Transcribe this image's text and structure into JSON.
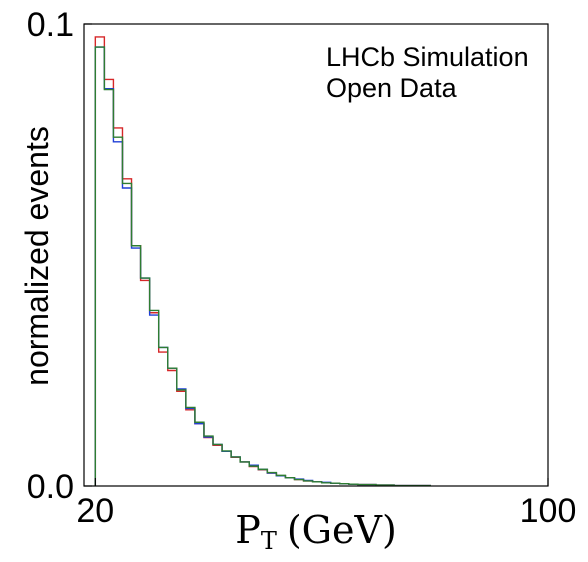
{
  "chart_data": {
    "type": "line",
    "xlabel": "P",
    "xlabel_sub": "T",
    "xlabel_unit": "(GeV)",
    "ylabel": "normalized events",
    "xlim": [
      18,
      100
    ],
    "ylim": [
      0.0,
      0.1
    ],
    "x_ticks": [
      20,
      100
    ],
    "y_ticks": [
      0.0,
      0.1
    ],
    "x_tick_labels": [
      "20",
      "100"
    ],
    "y_tick_labels": [
      "0.0",
      "0.1"
    ],
    "annotation_lines": [
      "LHCb Simulation",
      "Open Data"
    ],
    "grid": false,
    "legend": "none",
    "bin_edges": [
      20,
      21.6,
      23.2,
      24.8,
      26.4,
      28,
      29.6,
      31.2,
      32.8,
      34.4,
      36,
      37.6,
      39.2,
      40.8,
      42.4,
      44,
      45.6,
      47.2,
      48.8,
      50.4,
      52,
      53.6,
      55.2,
      56.8,
      58.4,
      60,
      61.6,
      63.2,
      64.8,
      66.4,
      68,
      69.6,
      71.2,
      72.8,
      74.4,
      76,
      77.6,
      79.2
    ],
    "series": [
      {
        "color": "#d62728",
        "values": [
          0.0972,
          0.088,
          0.0775,
          0.0665,
          0.052,
          0.0445,
          0.0375,
          0.029,
          0.025,
          0.0205,
          0.0165,
          0.0135,
          0.0105,
          0.0088,
          0.0075,
          0.0062,
          0.0052,
          0.0042,
          0.0035,
          0.0028,
          0.0022,
          0.0018,
          0.0014,
          0.0011,
          0.0009,
          0.0007,
          0.0006,
          0.0005,
          0.0004,
          0.0003,
          0.0003,
          0.0002,
          0.0002,
          0.0001,
          0.0001,
          0.0001,
          0.0001
        ]
      },
      {
        "color": "#1f3fd6",
        "values": [
          0.095,
          0.086,
          0.0745,
          0.0645,
          0.0515,
          0.045,
          0.037,
          0.03,
          0.0255,
          0.021,
          0.0168,
          0.0135,
          0.0106,
          0.009,
          0.0075,
          0.0063,
          0.0052,
          0.0045,
          0.0036,
          0.0028,
          0.0022,
          0.0018,
          0.0015,
          0.0012,
          0.0009,
          0.0008,
          0.0006,
          0.0005,
          0.0004,
          0.0003,
          0.0003,
          0.0002,
          0.0002,
          0.0001,
          0.0001,
          0.0001,
          0.0001
        ]
      },
      {
        "color": "#2e7d32",
        "values": [
          0.095,
          0.0858,
          0.0755,
          0.0655,
          0.052,
          0.045,
          0.038,
          0.03,
          0.0255,
          0.0208,
          0.017,
          0.0138,
          0.0108,
          0.009,
          0.0076,
          0.0063,
          0.0052,
          0.0043,
          0.0036,
          0.0029,
          0.0023,
          0.0018,
          0.0014,
          0.0011,
          0.0009,
          0.0007,
          0.0006,
          0.0005,
          0.0004,
          0.0003,
          0.0003,
          0.0002,
          0.0002,
          0.0001,
          0.0001,
          0.0001,
          0.0001
        ]
      }
    ]
  }
}
